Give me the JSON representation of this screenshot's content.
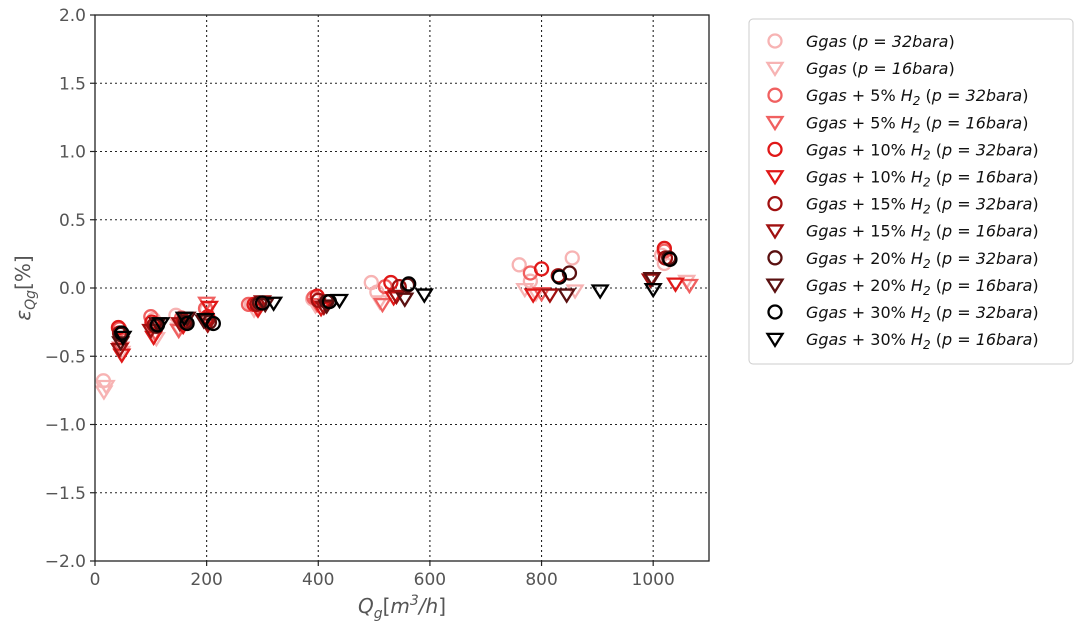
{
  "chart_data": {
    "type": "scatter",
    "title": "",
    "xlabel": "Q_g[m^3/h]",
    "ylabel": "ε_Qg[%]",
    "xlim": [
      0,
      1100
    ],
    "ylim": [
      -2.0,
      2.0
    ],
    "xticks": [
      "0",
      "200",
      "400",
      "600",
      "800",
      "1000"
    ],
    "yticks": [
      "2.0",
      "1.5",
      "1.0",
      "0.5",
      "0.0",
      "−0.5",
      "−1.0",
      "−1.5",
      "−2.0"
    ],
    "grid": true,
    "legend_position": "outside-right",
    "series": [
      {
        "name": "Ggas (p = 32bara)",
        "marker": "circle",
        "color": "#f7b3b3",
        "points": [
          [
            15,
            -0.68
          ],
          [
            45,
            -0.33
          ],
          [
            105,
            -0.23
          ],
          [
            145,
            -0.2
          ],
          [
            200,
            -0.16
          ],
          [
            280,
            -0.12
          ],
          [
            390,
            -0.08
          ],
          [
            495,
            0.04
          ],
          [
            505,
            -0.03
          ],
          [
            760,
            0.17
          ],
          [
            780,
            0.05
          ],
          [
            855,
            0.22
          ],
          [
            1015,
            0.24
          ],
          [
            1020,
            0.18
          ]
        ]
      },
      {
        "name": "Ggas (p = 16bara)",
        "marker": "triangle",
        "color": "#f7b3b3",
        "points": [
          [
            16,
            -0.76
          ],
          [
            20,
            -0.72
          ],
          [
            48,
            -0.47
          ],
          [
            110,
            -0.37
          ],
          [
            150,
            -0.3
          ],
          [
            200,
            -0.26
          ],
          [
            285,
            -0.16
          ],
          [
            395,
            -0.13
          ],
          [
            510,
            -0.1
          ],
          [
            770,
            -0.01
          ],
          [
            790,
            -0.04
          ],
          [
            860,
            -0.02
          ],
          [
            1060,
            0.05
          ]
        ]
      },
      {
        "name": "Ggas + 5% H_2 (p = 32bara)",
        "marker": "circle",
        "color": "#f06060",
        "points": [
          [
            44,
            -0.3
          ],
          [
            100,
            -0.21
          ],
          [
            155,
            -0.22
          ],
          [
            198,
            -0.15
          ],
          [
            275,
            -0.12
          ],
          [
            392,
            -0.07
          ],
          [
            520,
            0.01
          ],
          [
            780,
            0.11
          ],
          [
            1020,
            0.27
          ]
        ]
      },
      {
        "name": "Ggas + 5% H_2 (p = 16bara)",
        "marker": "triangle",
        "color": "#f06060",
        "points": [
          [
            46,
            -0.44
          ],
          [
            108,
            -0.33
          ],
          [
            150,
            -0.31
          ],
          [
            200,
            -0.11
          ],
          [
            290,
            -0.15
          ],
          [
            398,
            -0.12
          ],
          [
            515,
            -0.12
          ],
          [
            800,
            -0.04
          ],
          [
            1065,
            0.02
          ]
        ]
      },
      {
        "name": "Ggas + 10% H_2 (p = 32bara)",
        "marker": "circle",
        "color": "#e01818",
        "points": [
          [
            42,
            -0.29
          ],
          [
            102,
            -0.25
          ],
          [
            158,
            -0.24
          ],
          [
            202,
            -0.21
          ],
          [
            285,
            -0.12
          ],
          [
            398,
            -0.06
          ],
          [
            530,
            0.04
          ],
          [
            800,
            0.14
          ],
          [
            1020,
            0.29
          ]
        ]
      },
      {
        "name": "Ggas + 10% H_2 (p = 16bara)",
        "marker": "triangle",
        "color": "#e01818",
        "points": [
          [
            48,
            -0.49
          ],
          [
            105,
            -0.36
          ],
          [
            158,
            -0.28
          ],
          [
            205,
            -0.14
          ],
          [
            292,
            -0.16
          ],
          [
            405,
            -0.15
          ],
          [
            535,
            -0.07
          ],
          [
            785,
            -0.05
          ],
          [
            1040,
            0.03
          ]
        ]
      },
      {
        "name": "Ggas + 15% H_2 (p = 32bara)",
        "marker": "circle",
        "color": "#a01010",
        "points": [
          [
            44,
            -0.33
          ],
          [
            106,
            -0.27
          ],
          [
            160,
            -0.24
          ],
          [
            200,
            -0.23
          ],
          [
            290,
            -0.12
          ],
          [
            400,
            -0.09
          ],
          [
            545,
            0.01
          ],
          [
            830,
            0.09
          ],
          [
            1022,
            0.22
          ]
        ]
      },
      {
        "name": "Ggas + 15% H_2 (p = 16bara)",
        "marker": "triangle",
        "color": "#a01010",
        "points": [
          [
            44,
            -0.45
          ],
          [
            100,
            -0.31
          ],
          [
            152,
            -0.26
          ],
          [
            202,
            -0.27
          ],
          [
            300,
            -0.1
          ],
          [
            410,
            -0.14
          ],
          [
            540,
            -0.06
          ],
          [
            815,
            -0.05
          ],
          [
            995,
            0.06
          ]
        ]
      },
      {
        "name": "Ggas + 20% H_2 (p = 32bara)",
        "marker": "circle",
        "color": "#5a1010",
        "points": [
          [
            46,
            -0.34
          ],
          [
            110,
            -0.28
          ],
          [
            162,
            -0.25
          ],
          [
            205,
            -0.25
          ],
          [
            295,
            -0.11
          ],
          [
            415,
            -0.1
          ],
          [
            560,
            0.02
          ],
          [
            850,
            0.11
          ],
          [
            1028,
            0.22
          ]
        ]
      },
      {
        "name": "Ggas + 20% H_2 (p = 16bara)",
        "marker": "triangle",
        "color": "#5a1010",
        "points": [
          [
            46,
            -0.4
          ],
          [
            112,
            -0.26
          ],
          [
            165,
            -0.22
          ],
          [
            195,
            -0.24
          ],
          [
            305,
            -0.12
          ],
          [
            415,
            -0.13
          ],
          [
            555,
            -0.08
          ],
          [
            845,
            -0.05
          ],
          [
            998,
            0.07
          ]
        ]
      },
      {
        "name": "Ggas + 30% H_2 (p = 32bara)",
        "marker": "circle",
        "color": "#000000",
        "points": [
          [
            48,
            -0.33
          ],
          [
            112,
            -0.27
          ],
          [
            165,
            -0.26
          ],
          [
            212,
            -0.26
          ],
          [
            300,
            -0.11
          ],
          [
            420,
            -0.1
          ],
          [
            562,
            0.03
          ],
          [
            832,
            0.08
          ],
          [
            1030,
            0.21
          ]
        ]
      },
      {
        "name": "Ggas + 30% H_2 (p = 16bara)",
        "marker": "triangle",
        "color": "#000000",
        "points": [
          [
            50,
            -0.36
          ],
          [
            118,
            -0.26
          ],
          [
            160,
            -0.22
          ],
          [
            198,
            -0.23
          ],
          [
            320,
            -0.11
          ],
          [
            438,
            -0.09
          ],
          [
            590,
            -0.05
          ],
          [
            905,
            -0.02
          ],
          [
            1000,
            -0.01
          ]
        ]
      }
    ]
  }
}
